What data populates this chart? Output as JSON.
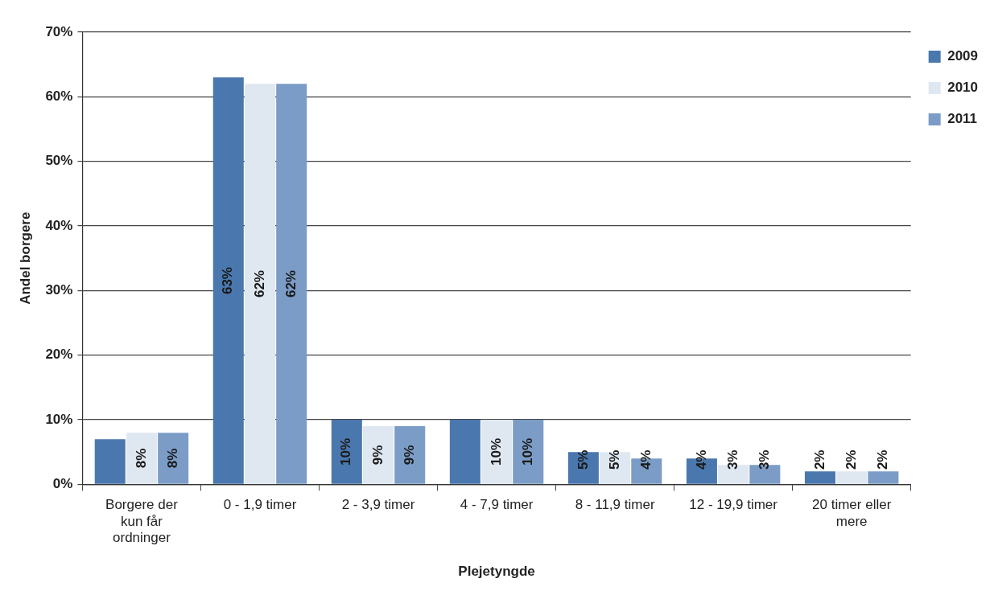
{
  "chart_data": {
    "type": "bar",
    "xlabel": "Plejetyngde",
    "ylabel": "Andel borgere",
    "categories": [
      "Borgere der kun får ordninger",
      "0 - 1,9 timer",
      "2 - 3,9 timer",
      "4 - 7,9 timer",
      "8 - 11,9 timer",
      "12 - 19,9 timer",
      "20 timer eller mere"
    ],
    "series": [
      {
        "name": "2009",
        "color": "#4a78ae",
        "values": [
          7,
          63,
          10,
          10,
          5,
          4,
          2
        ],
        "value_labels": [
          null,
          "63%",
          "10%",
          null,
          "5%",
          "4%",
          "2%"
        ]
      },
      {
        "name": "2010",
        "color": "#dfe7f1",
        "values": [
          8,
          62,
          9,
          10,
          5,
          3,
          2
        ],
        "value_labels": [
          "8%",
          "62%",
          "9%",
          "10%",
          "5%",
          "3%",
          "2%"
        ]
      },
      {
        "name": "2011",
        "color": "#7b9cc6",
        "values": [
          8,
          62,
          9,
          10,
          4,
          3,
          2
        ],
        "value_labels": [
          "8%",
          "62%",
          "9%",
          "10%",
          "4%",
          "3%",
          "2%"
        ]
      }
    ],
    "ylim": [
      0,
      70
    ],
    "yticks": [
      {
        "value": 0,
        "label": "0%"
      },
      {
        "value": 10,
        "label": "10%"
      },
      {
        "value": 20,
        "label": "20%"
      },
      {
        "value": 30,
        "label": "30%"
      },
      {
        "value": 40,
        "label": "40%"
      },
      {
        "value": 50,
        "label": "50%"
      },
      {
        "value": 60,
        "label": "60%"
      },
      {
        "value": 70,
        "label": "70%"
      }
    ],
    "grid": "y",
    "legend": "top right"
  }
}
